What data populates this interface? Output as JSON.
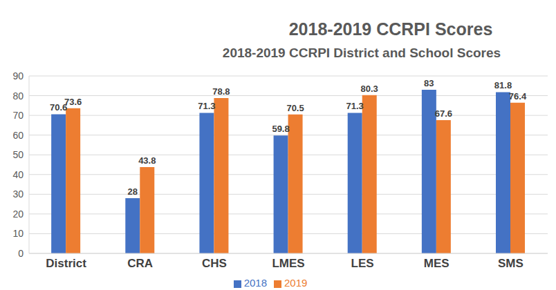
{
  "chart_data": {
    "type": "bar",
    "title": "2018-2019 CCRPI Scores",
    "subtitle": "2018-2019 CCRPI District and School Scores",
    "categories": [
      "District",
      "CRA",
      "CHS",
      "LMES",
      "LES",
      "MES",
      "SMS"
    ],
    "series": [
      {
        "name": "2018",
        "color": "#4472c4",
        "values": [
          70.6,
          28,
          71.3,
          59.8,
          71.3,
          83,
          81.8
        ]
      },
      {
        "name": "2019",
        "color": "#ed7d31",
        "values": [
          73.6,
          43.8,
          78.8,
          70.5,
          80.3,
          67.6,
          76.4
        ]
      }
    ],
    "ylim": [
      0,
      90
    ],
    "yticks": [
      0,
      10,
      20,
      30,
      40,
      50,
      60,
      70,
      80,
      90
    ],
    "grid": true,
    "data_labels": true,
    "legend": "bottom"
  }
}
